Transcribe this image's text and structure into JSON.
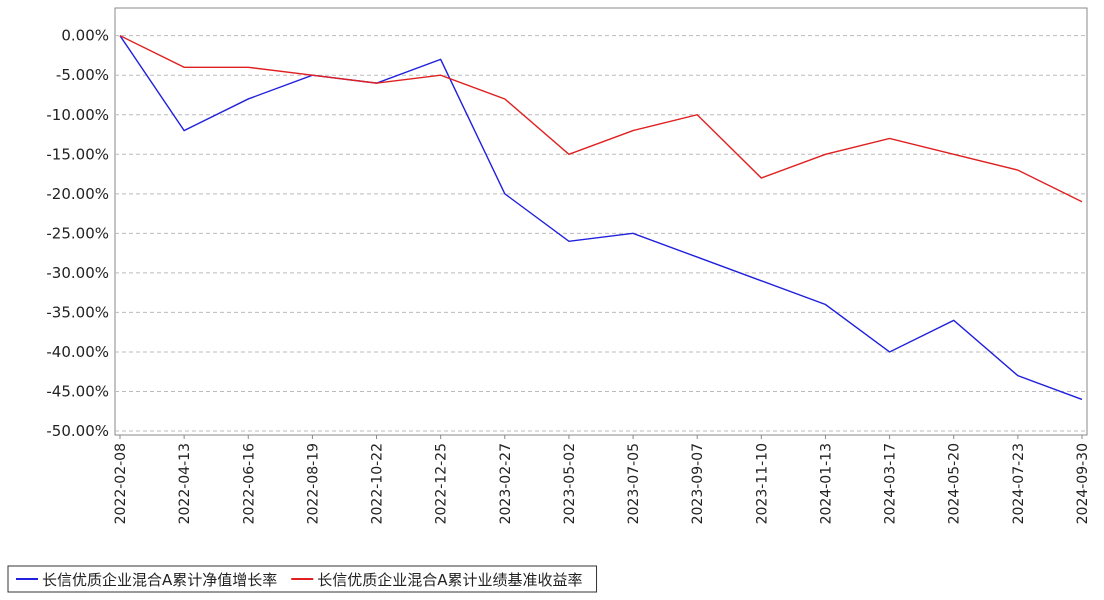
{
  "chart_data": {
    "type": "line",
    "categories": [
      "2022-02-08",
      "2022-04-13",
      "2022-06-16",
      "2022-08-19",
      "2022-10-22",
      "2022-12-25",
      "2023-02-27",
      "2023-05-02",
      "2023-07-05",
      "2023-09-07",
      "2023-11-10",
      "2024-01-13",
      "2024-03-17",
      "2024-05-20",
      "2024-07-23",
      "2024-09-30"
    ],
    "series": [
      {
        "name": "长信优质企业混合A累计净值增长率",
        "color": "#2020dd",
        "values": [
          0,
          -12,
          -8,
          -5,
          -6,
          -3,
          -20,
          -26,
          -25,
          -28,
          -31,
          -34,
          -40,
          -36,
          -43,
          -46
        ]
      },
      {
        "name": "长信优质企业混合A累计业绩基准收益率",
        "color": "#e02020",
        "values": [
          0,
          -4,
          -4,
          -5,
          -6,
          -5,
          -8,
          -15,
          -12,
          -10,
          -18,
          -15,
          -13,
          -15,
          -17,
          -21
        ]
      }
    ],
    "ylim": [
      -50.5,
      3.5
    ],
    "yticks": [
      {
        "value": 0,
        "label": "0.00%"
      },
      {
        "value": -5,
        "label": "-5.00%"
      },
      {
        "value": -10,
        "label": "-10.00%"
      },
      {
        "value": -15,
        "label": "-15.00%"
      },
      {
        "value": -20,
        "label": "-20.00%"
      },
      {
        "value": -25,
        "label": "-25.00%"
      },
      {
        "value": -30,
        "label": "-30.00%"
      },
      {
        "value": -35,
        "label": "-35.00%"
      },
      {
        "value": -40,
        "label": "-40.00%"
      },
      {
        "value": -45,
        "label": "-45.00%"
      },
      {
        "value": -50,
        "label": "-50.00%"
      }
    ],
    "grid": true
  }
}
